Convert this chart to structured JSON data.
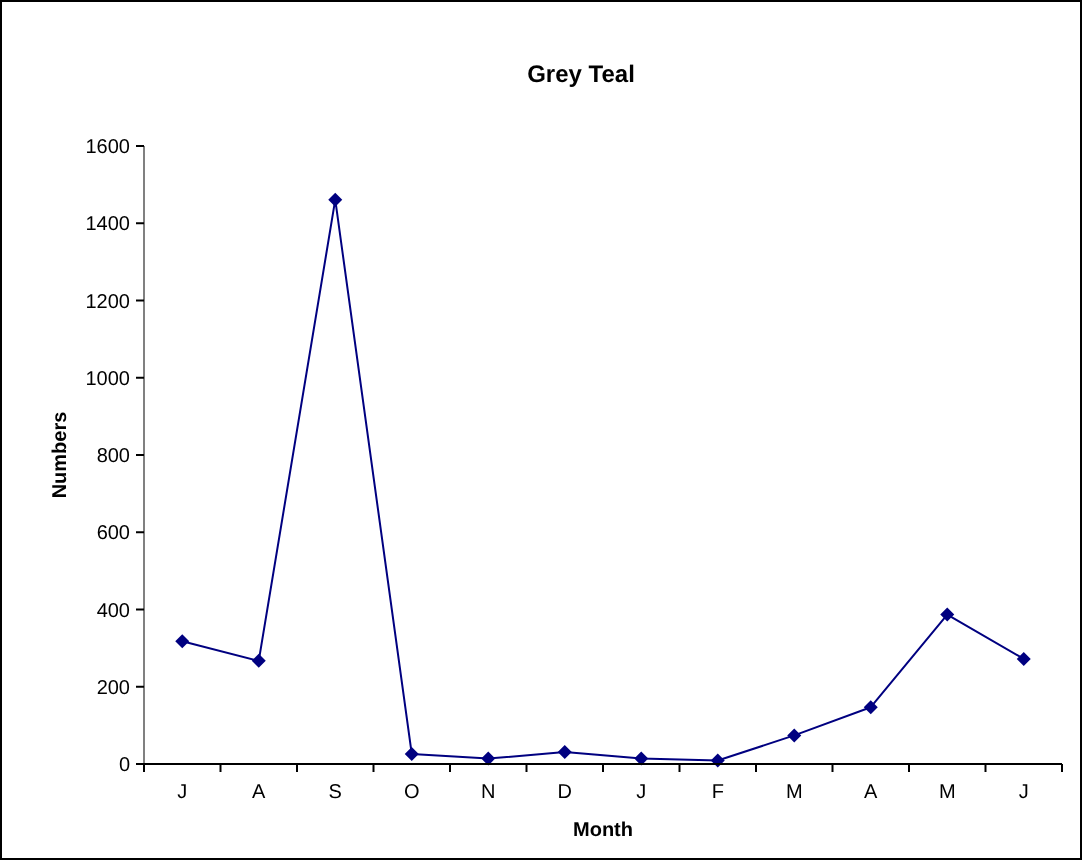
{
  "chart_data": {
    "type": "line",
    "title": "Grey Teal",
    "xlabel": "Month",
    "ylabel": "Numbers",
    "categories": [
      "J",
      "A",
      "S",
      "O",
      "N",
      "D",
      "J",
      "F",
      "M",
      "A",
      "M",
      "J"
    ],
    "series": [
      {
        "color": "#000080",
        "values": [
          318,
          267,
          1461,
          26,
          14,
          31,
          14,
          9,
          74,
          147,
          387,
          272
        ]
      }
    ],
    "ylim": [
      0,
      1600
    ],
    "yticks": [
      0,
      200,
      400,
      600,
      800,
      1000,
      1200,
      1400,
      1600
    ],
    "marker": "diamond",
    "line_style": "solid"
  }
}
